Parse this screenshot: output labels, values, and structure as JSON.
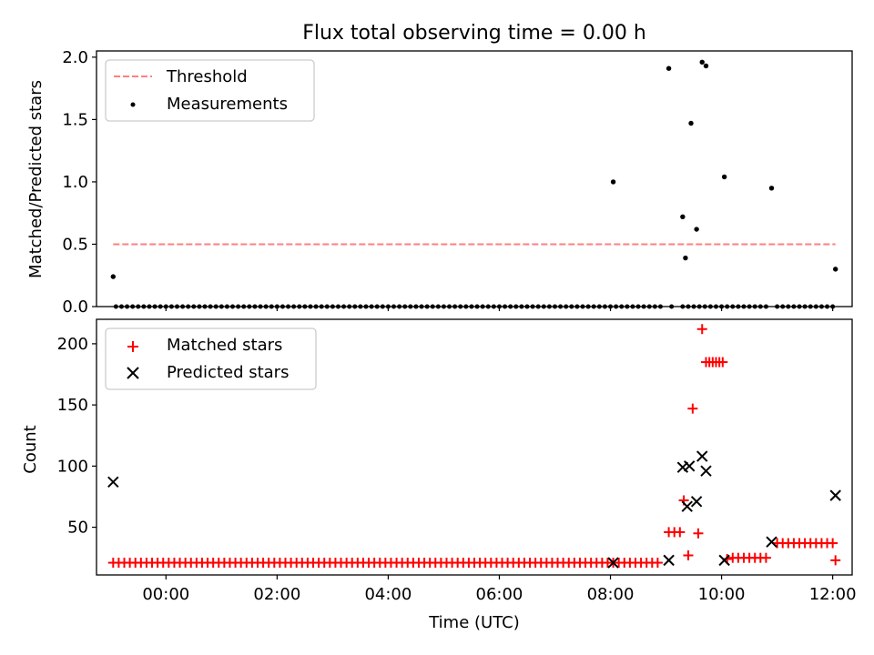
{
  "title": "Flux total observing time = 0.00 h",
  "chart_data": [
    {
      "type": "scatter",
      "ylabel": "Matched/Predicted stars",
      "xlim": [
        -1.25,
        12.35
      ],
      "ylim": [
        0,
        2.05
      ],
      "yticks": [
        "0.0",
        "0.5",
        "1.0",
        "1.5",
        "2.0"
      ],
      "legend_placement": "top-left",
      "threshold": {
        "name": "Threshold",
        "value": 0.5,
        "x_range": [
          -0.95,
          12.05
        ],
        "color": "#ff7f7f"
      },
      "measurements": {
        "name": "Measurements",
        "color": "#000000",
        "zero_range": [
          -0.9,
          12.0
        ],
        "zero_step": 0.1,
        "zero_gaps": [
          [
            8.95,
            9.1
          ],
          [
            9.2,
            9.3
          ],
          [
            9.9,
            10.0
          ],
          [
            10.85,
            11.0
          ]
        ],
        "points": [
          {
            "x": -0.95,
            "y": 0.24
          },
          {
            "x": 8.05,
            "y": 1.0
          },
          {
            "x": 9.05,
            "y": 1.91
          },
          {
            "x": 9.3,
            "y": 0.72
          },
          {
            "x": 9.35,
            "y": 0.39
          },
          {
            "x": 9.45,
            "y": 1.47
          },
          {
            "x": 9.55,
            "y": 0.62
          },
          {
            "x": 9.65,
            "y": 1.96
          },
          {
            "x": 9.72,
            "y": 1.93
          },
          {
            "x": 10.05,
            "y": 1.04
          },
          {
            "x": 10.9,
            "y": 0.95
          },
          {
            "x": 12.05,
            "y": 0.3
          }
        ]
      }
    },
    {
      "type": "scatter",
      "xlabel": "Time (UTC)",
      "ylabel": "Count",
      "xlim": [
        -1.25,
        12.35
      ],
      "ylim": [
        11,
        220
      ],
      "yticks": [
        "50",
        "100",
        "150",
        "200"
      ],
      "xticks": [
        "00:00",
        "02:00",
        "04:00",
        "06:00",
        "08:00",
        "10:00",
        "12:00"
      ],
      "legend_placement": "top-left",
      "matched": {
        "name": "Matched stars",
        "color": "#ff0000",
        "points": [
          {
            "x_from": -0.95,
            "x_to": 8.85,
            "step": 0.1,
            "y": 21
          },
          {
            "x_from": 9.05,
            "x_to": 9.25,
            "step": 0.1,
            "y": 46
          },
          {
            "x": 9.32,
            "y": 72
          },
          {
            "x": 9.4,
            "y": 27
          },
          {
            "x": 9.48,
            "y": 147
          },
          {
            "x": 9.58,
            "y": 45
          },
          {
            "x": 9.65,
            "y": 212
          },
          {
            "x_from": 9.72,
            "x_to": 10.02,
            "step": 0.06,
            "y": 185
          },
          {
            "x": 10.1,
            "y": 24
          },
          {
            "x_from": 10.2,
            "x_to": 10.8,
            "step": 0.1,
            "y": 25
          },
          {
            "x_from": 11.0,
            "x_to": 12.0,
            "step": 0.1,
            "y": 37
          },
          {
            "x": 12.05,
            "y": 23
          }
        ]
      },
      "predicted": {
        "name": "Predicted stars",
        "color": "#000000",
        "points": [
          {
            "x": -0.95,
            "y": 87
          },
          {
            "x": 8.05,
            "y": 21
          },
          {
            "x": 9.05,
            "y": 23
          },
          {
            "x": 9.3,
            "y": 99
          },
          {
            "x": 9.38,
            "y": 67
          },
          {
            "x": 9.42,
            "y": 100
          },
          {
            "x": 9.55,
            "y": 71
          },
          {
            "x": 9.65,
            "y": 108
          },
          {
            "x": 9.72,
            "y": 96
          },
          {
            "x": 10.05,
            "y": 23
          },
          {
            "x": 10.9,
            "y": 38
          },
          {
            "x": 12.05,
            "y": 76
          }
        ]
      }
    }
  ]
}
